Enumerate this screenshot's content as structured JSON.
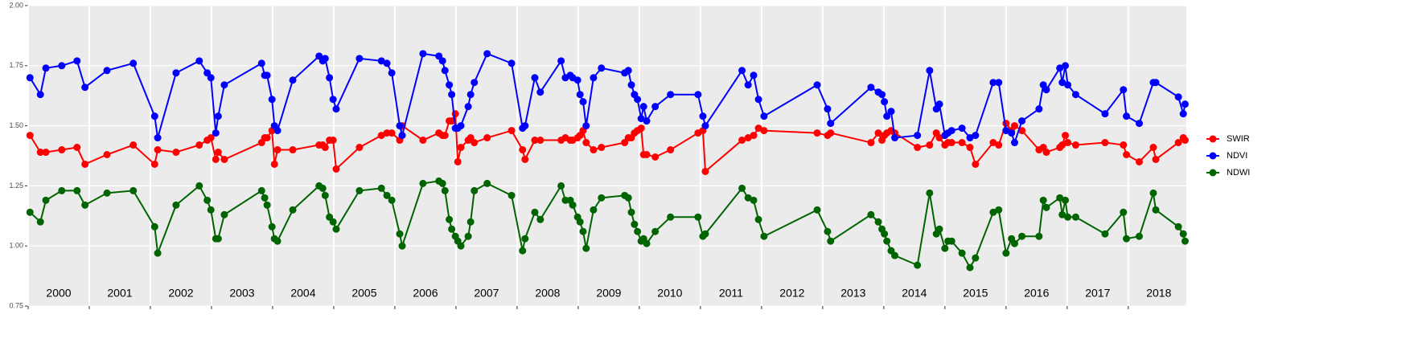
{
  "chart_data": {
    "type": "line",
    "x": [
      2000.03,
      2000.2,
      2000.29,
      2000.55,
      2000.8,
      2000.93,
      2001.29,
      2001.72,
      2002.07,
      2002.12,
      2002.42,
      2002.8,
      2002.93,
      2002.99,
      2003.07,
      2003.11,
      2003.21,
      2003.82,
      2003.87,
      2003.91,
      2003.99,
      2004.03,
      2004.08,
      2004.33,
      2004.76,
      2004.82,
      2004.86,
      2004.93,
      2004.99,
      2005.04,
      2005.42,
      2005.78,
      2005.87,
      2005.95,
      2006.08,
      2006.12,
      2006.46,
      2006.72,
      2006.78,
      2006.82,
      2006.89,
      2006.93,
      2006.99,
      2007.03,
      2007.08,
      2007.2,
      2007.24,
      2007.3,
      2007.51,
      2007.91,
      2008.09,
      2008.13,
      2008.29,
      2008.38,
      2008.72,
      2008.79,
      2008.87,
      2008.91,
      2008.99,
      2009.03,
      2009.08,
      2009.13,
      2009.25,
      2009.38,
      2009.76,
      2009.82,
      2009.87,
      2009.92,
      2009.97,
      2010.03,
      2010.07,
      2010.12,
      2010.26,
      2010.51,
      2010.96,
      2011.04,
      2011.08,
      2011.68,
      2011.78,
      2011.87,
      2011.95,
      2012.04,
      2012.91,
      2013.08,
      2013.13,
      2013.79,
      2013.91,
      2013.97,
      2014.01,
      2014.05,
      2014.12,
      2014.18,
      2014.55,
      2014.75,
      2014.86,
      2014.91,
      2015.0,
      2015.05,
      2015.11,
      2015.28,
      2015.41,
      2015.5,
      2015.79,
      2015.88,
      2016.0,
      2016.09,
      2016.14,
      2016.26,
      2016.54,
      2016.61,
      2016.66,
      2016.88,
      2016.92,
      2016.97,
      2017.01,
      2017.14,
      2017.62,
      2017.92,
      2017.97,
      2018.18,
      2018.41,
      2018.45,
      2018.82,
      2018.9,
      2018.93
    ],
    "series": [
      {
        "name": "SWIR",
        "color": "#ff0000",
        "values": [
          1.46,
          1.39,
          1.39,
          1.4,
          1.41,
          1.34,
          1.38,
          1.42,
          1.34,
          1.4,
          1.39,
          1.42,
          1.44,
          1.45,
          1.36,
          1.39,
          1.36,
          1.43,
          1.45,
          1.45,
          1.48,
          1.34,
          1.4,
          1.4,
          1.42,
          1.42,
          1.41,
          1.44,
          1.44,
          1.32,
          1.41,
          1.46,
          1.47,
          1.47,
          1.44,
          1.5,
          1.44,
          1.47,
          1.46,
          1.46,
          1.52,
          1.52,
          1.55,
          1.35,
          1.41,
          1.44,
          1.45,
          1.43,
          1.45,
          1.48,
          1.4,
          1.36,
          1.44,
          1.44,
          1.44,
          1.45,
          1.44,
          1.44,
          1.45,
          1.46,
          1.48,
          1.43,
          1.4,
          1.41,
          1.43,
          1.45,
          1.45,
          1.47,
          1.48,
          1.49,
          1.38,
          1.38,
          1.37,
          1.4,
          1.47,
          1.48,
          1.31,
          1.44,
          1.45,
          1.46,
          1.49,
          1.48,
          1.47,
          1.46,
          1.47,
          1.43,
          1.47,
          1.44,
          1.46,
          1.47,
          1.48,
          1.47,
          1.41,
          1.42,
          1.47,
          1.45,
          1.42,
          1.43,
          1.43,
          1.43,
          1.41,
          1.34,
          1.43,
          1.42,
          1.51,
          1.48,
          1.5,
          1.48,
          1.4,
          1.41,
          1.39,
          1.41,
          1.42,
          1.46,
          1.43,
          1.42,
          1.43,
          1.42,
          1.38,
          1.35,
          1.41,
          1.36,
          1.43,
          1.45,
          1.44
        ]
      },
      {
        "name": "NDVI",
        "color": "#0000ff",
        "values": [
          1.7,
          1.63,
          1.74,
          1.75,
          1.77,
          1.66,
          1.73,
          1.76,
          1.54,
          1.45,
          1.72,
          1.77,
          1.72,
          1.7,
          1.47,
          1.54,
          1.67,
          1.76,
          1.71,
          1.71,
          1.61,
          1.5,
          1.48,
          1.69,
          1.79,
          1.77,
          1.78,
          1.7,
          1.61,
          1.57,
          1.78,
          1.77,
          1.76,
          1.72,
          1.5,
          1.46,
          1.8,
          1.79,
          1.77,
          1.73,
          1.67,
          1.63,
          1.49,
          1.49,
          1.5,
          1.58,
          1.63,
          1.68,
          1.8,
          1.76,
          1.49,
          1.5,
          1.7,
          1.64,
          1.77,
          1.7,
          1.71,
          1.7,
          1.69,
          1.63,
          1.6,
          1.5,
          1.7,
          1.74,
          1.72,
          1.73,
          1.67,
          1.63,
          1.61,
          1.53,
          1.58,
          1.52,
          1.58,
          1.63,
          1.63,
          1.54,
          1.5,
          1.73,
          1.67,
          1.71,
          1.61,
          1.54,
          1.67,
          1.57,
          1.51,
          1.66,
          1.64,
          1.63,
          1.6,
          1.54,
          1.56,
          1.45,
          1.46,
          1.73,
          1.57,
          1.59,
          1.46,
          1.47,
          1.48,
          1.49,
          1.45,
          1.46,
          1.68,
          1.68,
          1.48,
          1.47,
          1.43,
          1.52,
          1.57,
          1.67,
          1.65,
          1.74,
          1.68,
          1.75,
          1.67,
          1.63,
          1.55,
          1.65,
          1.54,
          1.51,
          1.68,
          1.68,
          1.62,
          1.55,
          1.59
        ]
      },
      {
        "name": "NDWI",
        "color": "#006400",
        "values": [
          1.14,
          1.1,
          1.19,
          1.23,
          1.23,
          1.17,
          1.22,
          1.23,
          1.08,
          0.97,
          1.17,
          1.25,
          1.19,
          1.15,
          1.03,
          1.03,
          1.13,
          1.23,
          1.2,
          1.17,
          1.08,
          1.03,
          1.02,
          1.15,
          1.25,
          1.24,
          1.21,
          1.12,
          1.1,
          1.07,
          1.23,
          1.24,
          1.21,
          1.19,
          1.05,
          1.0,
          1.26,
          1.27,
          1.26,
          1.23,
          1.11,
          1.07,
          1.04,
          1.02,
          1.0,
          1.04,
          1.1,
          1.23,
          1.26,
          1.21,
          0.98,
          1.03,
          1.14,
          1.11,
          1.25,
          1.19,
          1.19,
          1.17,
          1.12,
          1.1,
          1.06,
          0.99,
          1.15,
          1.2,
          1.21,
          1.2,
          1.14,
          1.09,
          1.06,
          1.02,
          1.03,
          1.01,
          1.06,
          1.12,
          1.12,
          1.04,
          1.05,
          1.24,
          1.2,
          1.19,
          1.11,
          1.04,
          1.15,
          1.06,
          1.02,
          1.13,
          1.1,
          1.07,
          1.05,
          1.02,
          0.98,
          0.96,
          0.92,
          1.22,
          1.05,
          1.07,
          0.99,
          1.02,
          1.02,
          0.97,
          0.91,
          0.95,
          1.14,
          1.15,
          0.97,
          1.03,
          1.01,
          1.04,
          1.04,
          1.19,
          1.16,
          1.2,
          1.13,
          1.19,
          1.12,
          1.12,
          1.05,
          1.14,
          1.03,
          1.04,
          1.22,
          1.15,
          1.08,
          1.05,
          1.02
        ]
      }
    ],
    "xlim": [
      2000,
      2018.95
    ],
    "xticks": [
      2000,
      2001,
      2002,
      2003,
      2004,
      2005,
      2006,
      2007,
      2008,
      2009,
      2010,
      2011,
      2012,
      2013,
      2014,
      2015,
      2016,
      2017,
      2018
    ],
    "ylim": [
      0.75,
      2.0
    ],
    "yticks": [
      {
        "value": 0.75,
        "label": "0.75"
      },
      {
        "value": 1,
        "label": "1.00"
      },
      {
        "value": 1.25,
        "label": "1.25"
      },
      {
        "value": 1.5,
        "label": "1.50"
      },
      {
        "value": 1.75,
        "label": "1.75"
      },
      {
        "value": 2,
        "label": "2.00"
      }
    ],
    "grid": true,
    "legend": "right"
  }
}
